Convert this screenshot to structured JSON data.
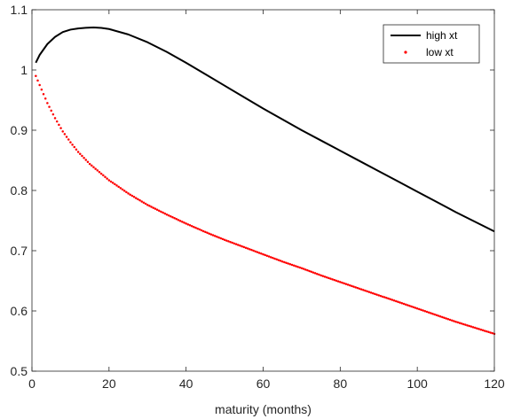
{
  "chart_data": {
    "type": "line",
    "xlabel": "maturity (months)",
    "ylabel": "",
    "xlim": [
      0,
      120
    ],
    "ylim": [
      0.5,
      1.1
    ],
    "xticks": [
      0,
      20,
      40,
      60,
      80,
      100,
      120
    ],
    "yticks": [
      0.5,
      0.6,
      0.7,
      0.8,
      0.9,
      1.0,
      1.1
    ],
    "ytick_labels": [
      "0.5",
      "0.6",
      "0.7",
      "0.8",
      "0.9",
      "1",
      "1.1"
    ],
    "grid": false,
    "legend_position": "top-right",
    "series": [
      {
        "name": "high xt",
        "style": "solid",
        "color": "#000000",
        "x": [
          1,
          2,
          4,
          6,
          8,
          10,
          12,
          14,
          16,
          18,
          20,
          25,
          30,
          35,
          40,
          45,
          50,
          55,
          60,
          65,
          70,
          75,
          80,
          85,
          90,
          95,
          100,
          105,
          110,
          115,
          120
        ],
        "y": [
          1.012,
          1.025,
          1.043,
          1.055,
          1.063,
          1.067,
          1.069,
          1.07,
          1.0705,
          1.0698,
          1.068,
          1.059,
          1.046,
          1.03,
          1.012,
          0.993,
          0.974,
          0.955,
          0.936,
          0.918,
          0.9,
          0.883,
          0.866,
          0.849,
          0.832,
          0.815,
          0.798,
          0.781,
          0.764,
          0.748,
          0.732
        ]
      },
      {
        "name": "low xt",
        "style": "dotted",
        "color": "#ff0000",
        "x": [
          1,
          2,
          4,
          6,
          8,
          10,
          12,
          15,
          20,
          25,
          30,
          35,
          40,
          45,
          50,
          55,
          60,
          65,
          70,
          75,
          80,
          85,
          90,
          95,
          100,
          105,
          110,
          115,
          120
        ],
        "y": [
          0.99,
          0.975,
          0.945,
          0.92,
          0.898,
          0.88,
          0.864,
          0.844,
          0.817,
          0.795,
          0.776,
          0.76,
          0.745,
          0.731,
          0.718,
          0.706,
          0.694,
          0.682,
          0.671,
          0.659,
          0.648,
          0.637,
          0.626,
          0.615,
          0.604,
          0.593,
          0.582,
          0.572,
          0.562
        ]
      }
    ]
  }
}
